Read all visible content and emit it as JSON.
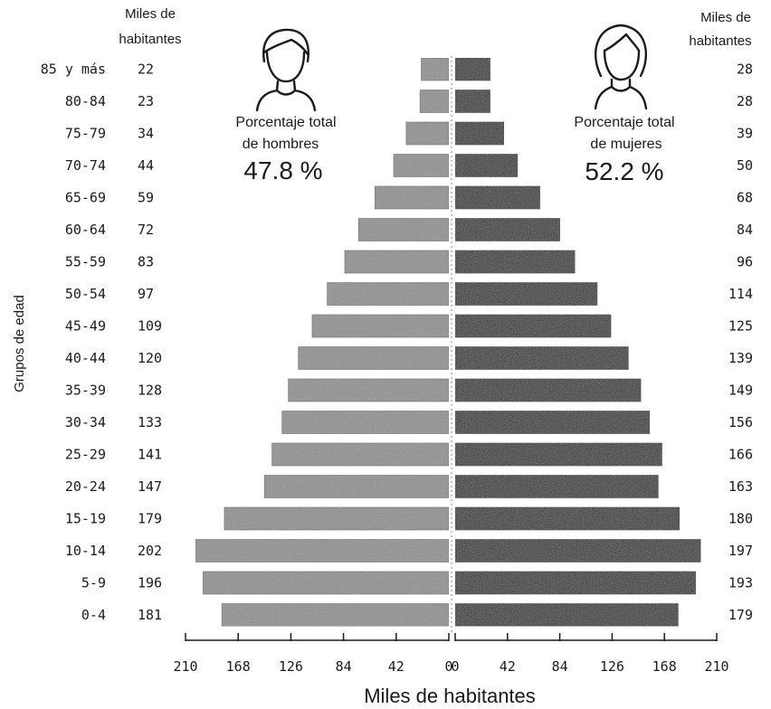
{
  "chart_data": {
    "type": "bar",
    "layout": "population-pyramid",
    "ylabel": "Grupos de edad",
    "xlabel": "Miles de habitantes",
    "column_header_left": "Miles de habitantes",
    "column_header_right": "Miles de habitantes",
    "categories": [
      "85 y más",
      "80-84",
      "75-79",
      "70-74",
      "65-69",
      "60-64",
      "55-59",
      "50-54",
      "45-49",
      "40-44",
      "35-39",
      "30-34",
      "25-29",
      "20-24",
      "15-19",
      "10-14",
      "5-9",
      "0-4"
    ],
    "series": [
      {
        "name": "hombres",
        "values": [
          22,
          23,
          34,
          44,
          59,
          72,
          83,
          97,
          109,
          120,
          128,
          133,
          141,
          147,
          179,
          202,
          196,
          181
        ],
        "color": "#8f8f8f"
      },
      {
        "name": "mujeres",
        "values": [
          28,
          28,
          39,
          50,
          68,
          84,
          96,
          114,
          125,
          139,
          149,
          156,
          166,
          163,
          180,
          197,
          193,
          179
        ],
        "color": "#2f2f2f"
      }
    ],
    "xlim": [
      0,
      210
    ],
    "x_ticks_left": [
      "210",
      "168",
      "126",
      "84",
      "42",
      "0"
    ],
    "x_ticks_right": [
      "0",
      "42",
      "84",
      "126",
      "168",
      "210"
    ],
    "annotations": {
      "men": {
        "label_line1": "Porcentaje total",
        "label_line2": "de hombres",
        "value": "47.8 %",
        "icon": "man-icon"
      },
      "women": {
        "label_line1": "Porcentaje total",
        "label_line2": "de mujeres",
        "value": "52.2 %",
        "icon": "woman-icon"
      }
    }
  }
}
